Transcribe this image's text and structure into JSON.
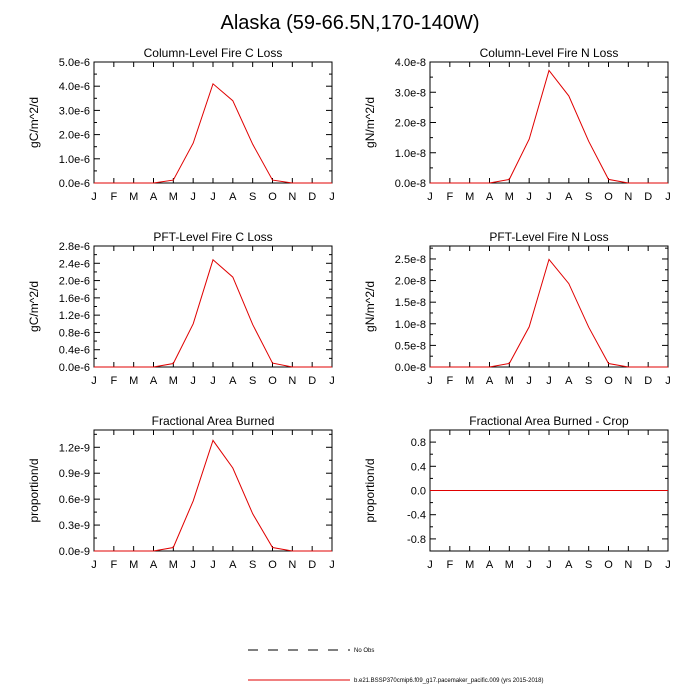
{
  "title": "Alaska (59-66.5N,170-140W)",
  "months": [
    "J",
    "F",
    "M",
    "A",
    "M",
    "J",
    "J",
    "A",
    "S",
    "O",
    "N",
    "D",
    "J"
  ],
  "colors": {
    "series": "#e00000",
    "axis": "#000000"
  },
  "chart_data": [
    {
      "type": "line",
      "title": "Column-Level Fire C Loss",
      "ylabel": "gC/m^2/d",
      "ylim": [
        0,
        5e-06
      ],
      "yticks": [
        0,
        1e-06,
        2e-06,
        3e-06,
        4e-06,
        5e-06
      ],
      "ytick_labels": [
        "0.0e-6",
        "1.0e-6",
        "2.0e-6",
        "3.0e-6",
        "4.0e-6",
        "5.0e-6"
      ],
      "y_minor": [
        5e-07,
        1.5e-06,
        2.5e-06,
        3.5e-06,
        4.5e-06
      ],
      "values": [
        0,
        0,
        0,
        0,
        1.2e-07,
        1.65e-06,
        4.1e-06,
        3.4e-06,
        1.6e-06,
        1.2e-07,
        0,
        0,
        0
      ]
    },
    {
      "type": "line",
      "title": "Column-Level Fire N Loss",
      "ylabel": "gN/m^2/d",
      "ylim": [
        0,
        4e-08
      ],
      "yticks": [
        0,
        1e-08,
        2e-08,
        3e-08,
        4e-08
      ],
      "ytick_labels": [
        "0.0e-8",
        "1.0e-8",
        "2.0e-8",
        "3.0e-8",
        "4.0e-8"
      ],
      "y_minor": [
        5e-09,
        1.5e-08,
        2.5e-08,
        3.5e-08
      ],
      "values": [
        0,
        0,
        0,
        0,
        1.2e-09,
        1.45e-08,
        3.72e-08,
        2.88e-08,
        1.38e-08,
        1.2e-09,
        0,
        0,
        0
      ]
    },
    {
      "type": "line",
      "title": "PFT-Level Fire C Loss",
      "ylabel": "gC/m^2/d",
      "ylim": [
        0,
        2.8e-06
      ],
      "yticks": [
        0,
        4e-07,
        8e-07,
        1.2e-06,
        1.6e-06,
        2e-06,
        2.4e-06,
        2.8e-06
      ],
      "ytick_labels": [
        "0.0e-6",
        "0.4e-6",
        "0.8e-6",
        "1.2e-6",
        "1.6e-6",
        "2.0e-6",
        "2.4e-6",
        "2.8e-6"
      ],
      "y_minor": [
        2e-07,
        6e-07,
        1e-06,
        1.4e-06,
        1.8e-06,
        2.2e-06,
        2.6e-06
      ],
      "values": [
        0,
        0,
        0,
        0,
        8e-08,
        1e-06,
        2.48e-06,
        2.08e-06,
        9.8e-07,
        9e-08,
        0,
        0,
        0
      ]
    },
    {
      "type": "line",
      "title": "PFT-Level Fire N Loss",
      "ylabel": "gN/m^2/d",
      "ylim": [
        0,
        2.8e-08
      ],
      "yticks": [
        0,
        5e-09,
        1e-08,
        1.5e-08,
        2e-08,
        2.5e-08
      ],
      "ytick_labels": [
        "0.0e-8",
        "0.5e-8",
        "1.0e-8",
        "1.5e-8",
        "2.0e-8",
        "2.5e-8"
      ],
      "y_minor": [
        2.5e-09,
        7.5e-09,
        1.25e-08,
        1.75e-08,
        2.25e-08,
        2.75e-08
      ],
      "values": [
        0,
        0,
        0,
        0,
        8e-10,
        9.3e-09,
        2.49e-08,
        1.93e-08,
        9.2e-09,
        8e-10,
        0,
        0,
        0
      ]
    },
    {
      "type": "line",
      "title": "Fractional Area Burned",
      "ylabel": "proportion/d",
      "ylim": [
        0,
        1.4e-09
      ],
      "yticks": [
        0,
        3e-10,
        6e-10,
        9e-10,
        1.2e-09
      ],
      "ytick_labels": [
        "0.0e-9",
        "0.3e-9",
        "0.6e-9",
        "0.9e-9",
        "1.2e-9"
      ],
      "y_minor": [
        1.5e-10,
        4.5e-10,
        7.5e-10,
        1.05e-09,
        1.35e-09
      ],
      "values": [
        0,
        0,
        0,
        0,
        4e-11,
        5.8e-10,
        1.28e-09,
        9.6e-10,
        4.3e-10,
        4e-11,
        0,
        0,
        0
      ]
    },
    {
      "type": "line",
      "title": "Fractional Area Burned - Crop",
      "ylabel": "proportion/d",
      "ylim": [
        -1.0,
        1.0
      ],
      "yticks": [
        -0.8,
        -0.4,
        0,
        0.4,
        0.8
      ],
      "ytick_labels": [
        "-0.8",
        "-0.4",
        "0.0",
        "0.4",
        "0.8"
      ],
      "y_minor": [
        -0.6,
        -0.2,
        0.2,
        0.6
      ],
      "values": [
        0,
        0,
        0,
        0,
        0,
        0,
        0,
        0,
        0,
        0,
        0,
        0,
        0
      ]
    }
  ],
  "legend": {
    "obs_label": "No Obs",
    "model_label": "b.e21.BSSP370cmip6.f09_g17.pacemaker_pacific.009 (yrs 2015-2018)"
  }
}
